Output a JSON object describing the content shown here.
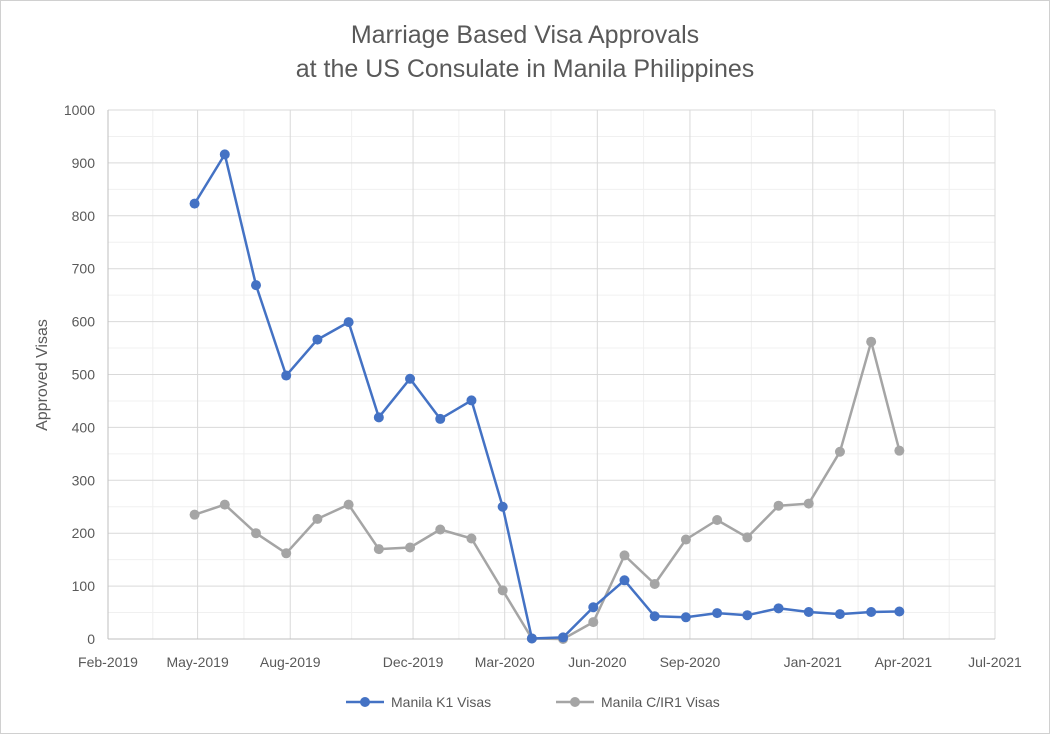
{
  "chart_data": {
    "type": "line",
    "title_lines": [
      "Marriage Based Visa Approvals",
      "at the US Consulate in Manila Philippines"
    ],
    "xlabel": "",
    "ylabel": "Approved Visas",
    "ylim": [
      0,
      1000
    ],
    "yticks": [
      "0",
      "100",
      "200",
      "300",
      "400",
      "500",
      "600",
      "700",
      "800",
      "900",
      "1000"
    ],
    "xlim": [
      "2019-02-01",
      "2021-07-01"
    ],
    "xtick_dates": [
      "2019-02-01",
      "2019-05-01",
      "2019-08-01",
      "2019-12-01",
      "2020-03-01",
      "2020-06-01",
      "2020-09-01",
      "2021-01-01",
      "2021-04-01",
      "2021-07-01"
    ],
    "xticks": [
      "Feb-2019",
      "May-2019",
      "Aug-2019",
      "Dec-2019",
      "Mar-2020",
      "Jun-2020",
      "Sep-2020",
      "Jan-2021",
      "Apr-2021",
      "Jul-2021"
    ],
    "grid": true,
    "legend_position": "bottom",
    "x": [
      "2019-04-28",
      "2019-05-28",
      "2019-06-28",
      "2019-07-28",
      "2019-08-28",
      "2019-09-28",
      "2019-10-28",
      "2019-11-28",
      "2019-12-28",
      "2020-01-28",
      "2020-02-28",
      "2020-03-28",
      "2020-04-28",
      "2020-05-28",
      "2020-06-28",
      "2020-07-28",
      "2020-08-28",
      "2020-09-28",
      "2020-10-28",
      "2020-11-28",
      "2020-12-28",
      "2021-01-28",
      "2021-02-28",
      "2021-03-28"
    ],
    "series": [
      {
        "name": "Manila K1 Visas",
        "color": "#4472c4",
        "values": [
          823,
          916,
          669,
          498,
          566,
          599,
          419,
          492,
          416,
          451,
          250,
          1,
          3,
          60,
          111,
          43,
          41,
          49,
          45,
          58,
          51,
          47,
          51,
          52
        ]
      },
      {
        "name": "Manila C/IR1 Visas",
        "color": "#a5a5a5",
        "values": [
          235,
          254,
          200,
          162,
          227,
          254,
          170,
          173,
          207,
          190,
          92,
          1,
          0,
          32,
          158,
          104,
          188,
          225,
          192,
          252,
          256,
          354,
          562,
          356
        ]
      }
    ]
  }
}
